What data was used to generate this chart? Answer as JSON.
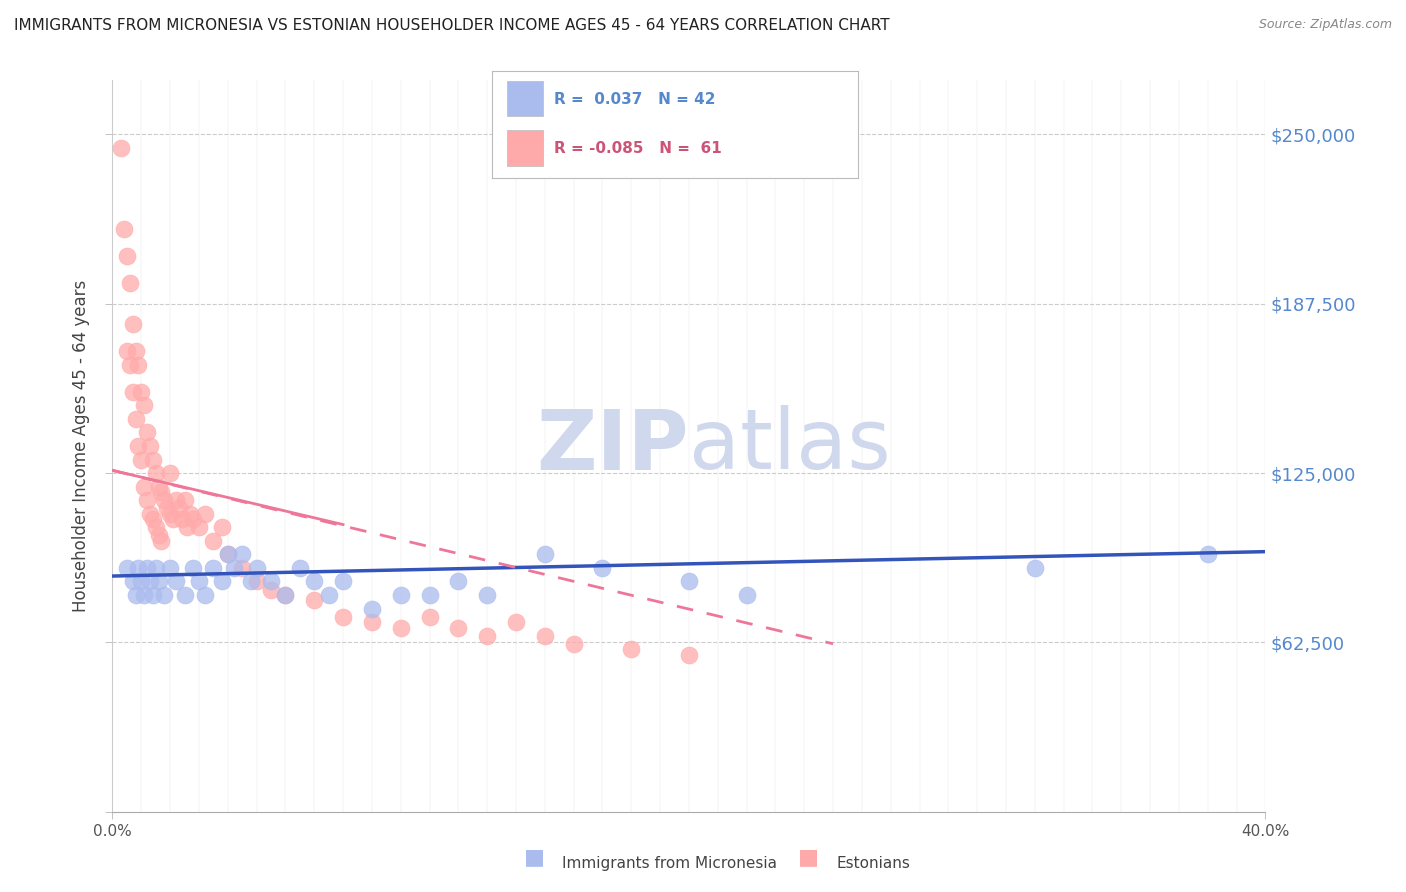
{
  "title": "IMMIGRANTS FROM MICRONESIA VS ESTONIAN HOUSEHOLDER INCOME AGES 45 - 64 YEARS CORRELATION CHART",
  "source": "Source: ZipAtlas.com",
  "ylabel": "Householder Income Ages 45 - 64 years",
  "yticks": [
    0,
    62500,
    125000,
    187500,
    250000
  ],
  "ytick_labels": [
    "",
    "$62,500",
    "$125,000",
    "$187,500",
    "$250,000"
  ],
  "xmin": 0.0,
  "xmax": 40.0,
  "ymin": 0,
  "ymax": 270000,
  "color_blue": "#aabbee",
  "color_pink": "#ffaaaa",
  "color_blue_line": "#3355bb",
  "color_pink_line": "#ee7799",
  "watermark_color": "#d0d8ee",
  "blue_scatter_x": [
    0.5,
    0.7,
    0.8,
    0.9,
    1.0,
    1.1,
    1.2,
    1.3,
    1.4,
    1.5,
    1.6,
    1.8,
    2.0,
    2.2,
    2.5,
    2.8,
    3.0,
    3.2,
    3.5,
    3.8,
    4.0,
    4.2,
    4.5,
    4.8,
    5.0,
    5.5,
    6.0,
    6.5,
    7.0,
    7.5,
    8.0,
    9.0,
    10.0,
    11.0,
    12.0,
    13.0,
    15.0,
    17.0,
    20.0,
    22.0,
    32.0,
    38.0
  ],
  "blue_scatter_y": [
    90000,
    85000,
    80000,
    90000,
    85000,
    80000,
    90000,
    85000,
    80000,
    90000,
    85000,
    80000,
    90000,
    85000,
    80000,
    90000,
    85000,
    80000,
    90000,
    85000,
    95000,
    90000,
    95000,
    85000,
    90000,
    85000,
    80000,
    90000,
    85000,
    80000,
    85000,
    75000,
    80000,
    80000,
    85000,
    80000,
    95000,
    90000,
    85000,
    80000,
    90000,
    95000
  ],
  "pink_scatter_x": [
    0.3,
    0.4,
    0.5,
    0.5,
    0.6,
    0.6,
    0.7,
    0.7,
    0.8,
    0.8,
    0.9,
    0.9,
    1.0,
    1.0,
    1.1,
    1.1,
    1.2,
    1.2,
    1.3,
    1.3,
    1.4,
    1.4,
    1.5,
    1.5,
    1.6,
    1.6,
    1.7,
    1.7,
    1.8,
    1.9,
    2.0,
    2.0,
    2.1,
    2.2,
    2.3,
    2.4,
    2.5,
    2.6,
    2.7,
    2.8,
    3.0,
    3.2,
    3.5,
    3.8,
    4.0,
    4.5,
    5.0,
    5.5,
    6.0,
    7.0,
    8.0,
    9.0,
    10.0,
    11.0,
    12.0,
    13.0,
    14.0,
    15.0,
    16.0,
    18.0,
    20.0
  ],
  "pink_scatter_y": [
    245000,
    215000,
    205000,
    170000,
    195000,
    165000,
    180000,
    155000,
    170000,
    145000,
    165000,
    135000,
    155000,
    130000,
    150000,
    120000,
    140000,
    115000,
    135000,
    110000,
    130000,
    108000,
    125000,
    105000,
    120000,
    102000,
    118000,
    100000,
    115000,
    112000,
    110000,
    125000,
    108000,
    115000,
    112000,
    108000,
    115000,
    105000,
    110000,
    108000,
    105000,
    110000,
    100000,
    105000,
    95000,
    90000,
    85000,
    82000,
    80000,
    78000,
    72000,
    70000,
    68000,
    72000,
    68000,
    65000,
    70000,
    65000,
    62000,
    60000,
    58000
  ],
  "blue_trend_x": [
    0.0,
    40.0
  ],
  "blue_trend_y": [
    87000,
    96000
  ],
  "pink_trend_x": [
    0.0,
    25.0
  ],
  "pink_trend_y": [
    126000,
    62000
  ],
  "legend_text1": "R =  0.037   N = 42",
  "legend_text2": "R = -0.085   N =  61"
}
